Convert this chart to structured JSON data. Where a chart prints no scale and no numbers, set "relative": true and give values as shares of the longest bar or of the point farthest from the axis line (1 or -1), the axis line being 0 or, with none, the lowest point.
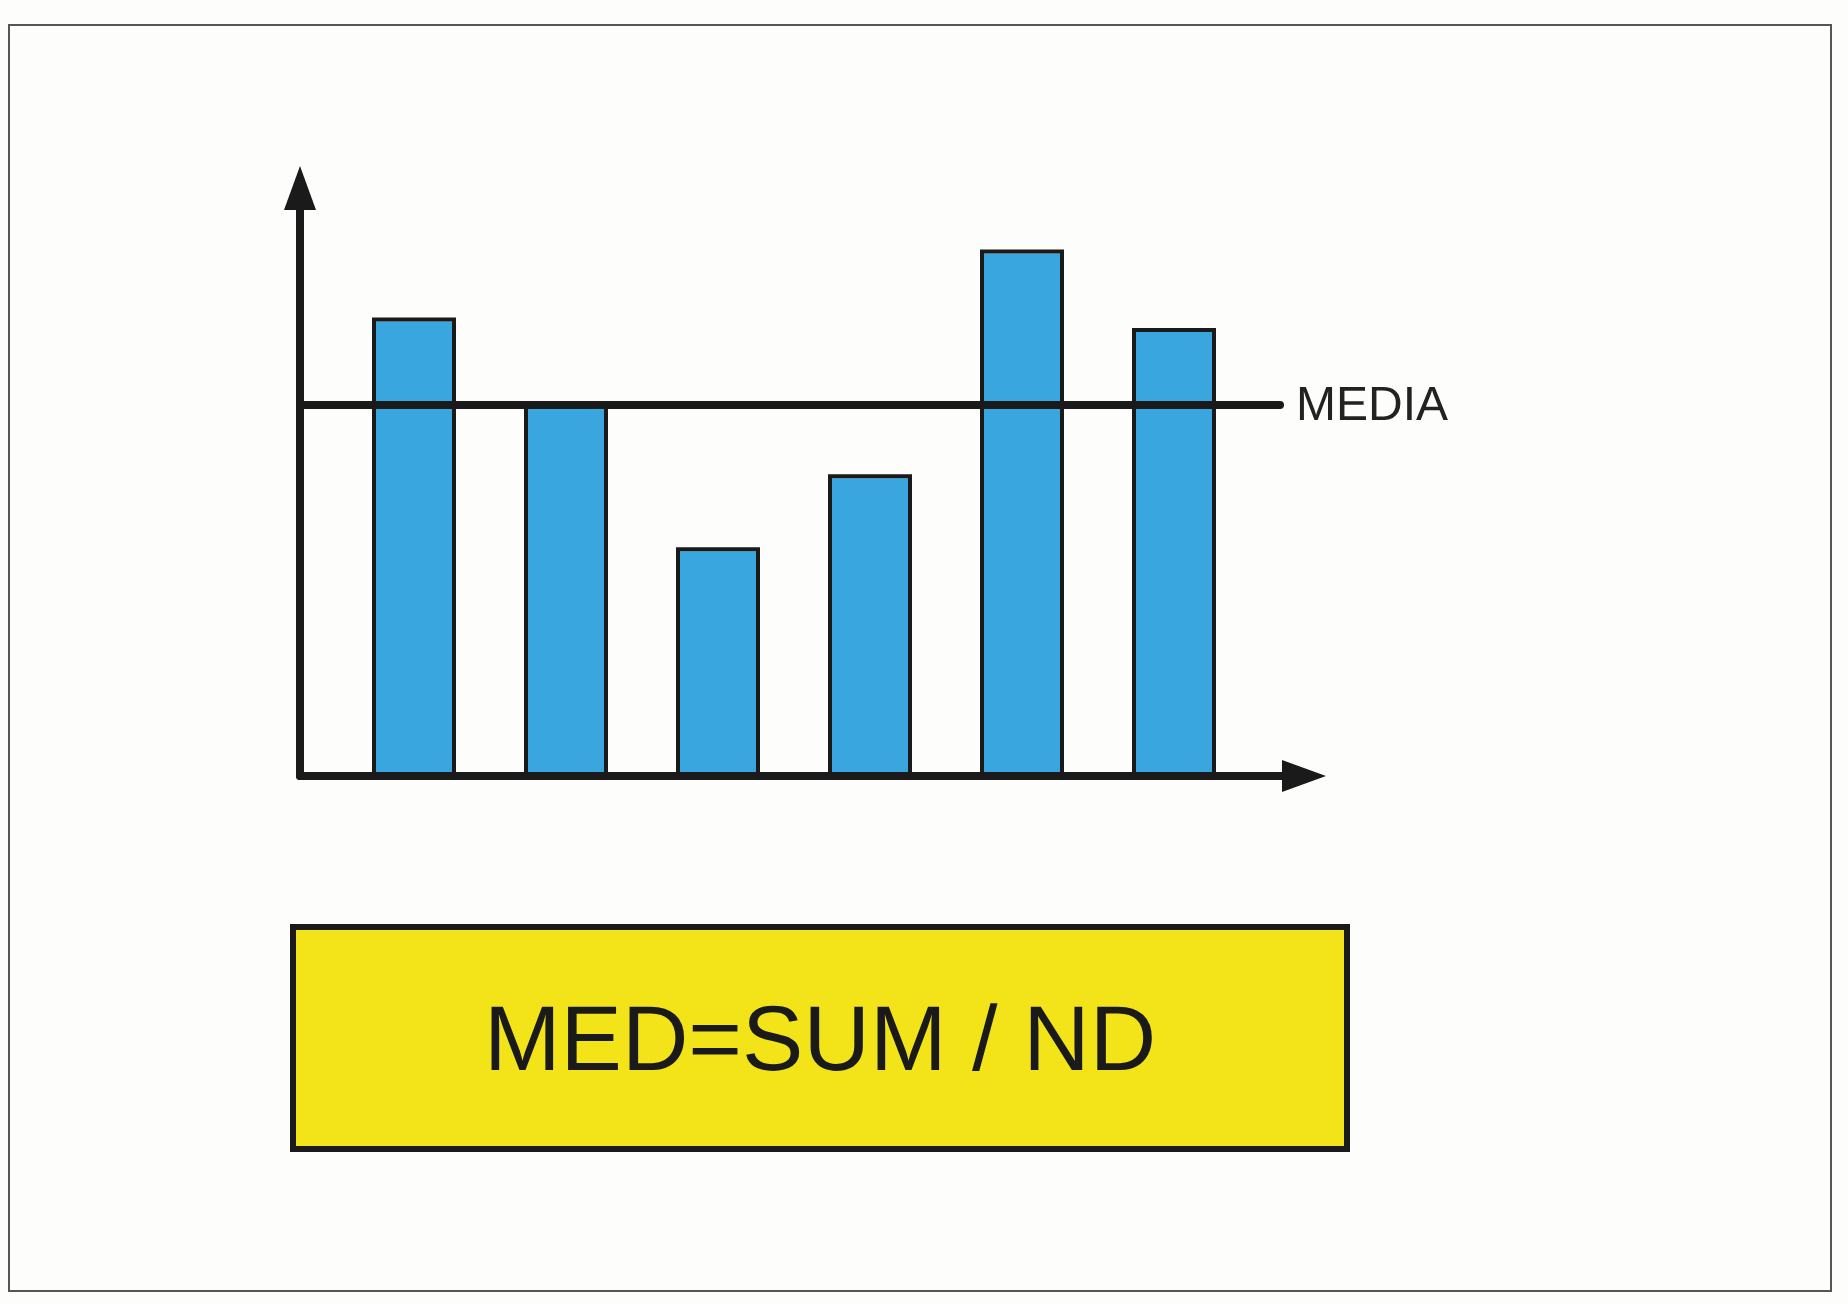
{
  "chart_data": {
    "type": "bar",
    "relative": true,
    "categories": [
      null,
      null,
      null,
      null,
      null,
      null
    ],
    "values": [
      0.87,
      0.71,
      0.43,
      0.57,
      1,
      0.85
    ],
    "color": "#3aa6df",
    "ref_lines": [
      {
        "axis": "y",
        "value": 0.71,
        "label": "MEDIA",
        "color": "#1a1a1a"
      }
    ],
    "annotations": [
      "MED=SUM / ND"
    ],
    "legend": false
  }
}
